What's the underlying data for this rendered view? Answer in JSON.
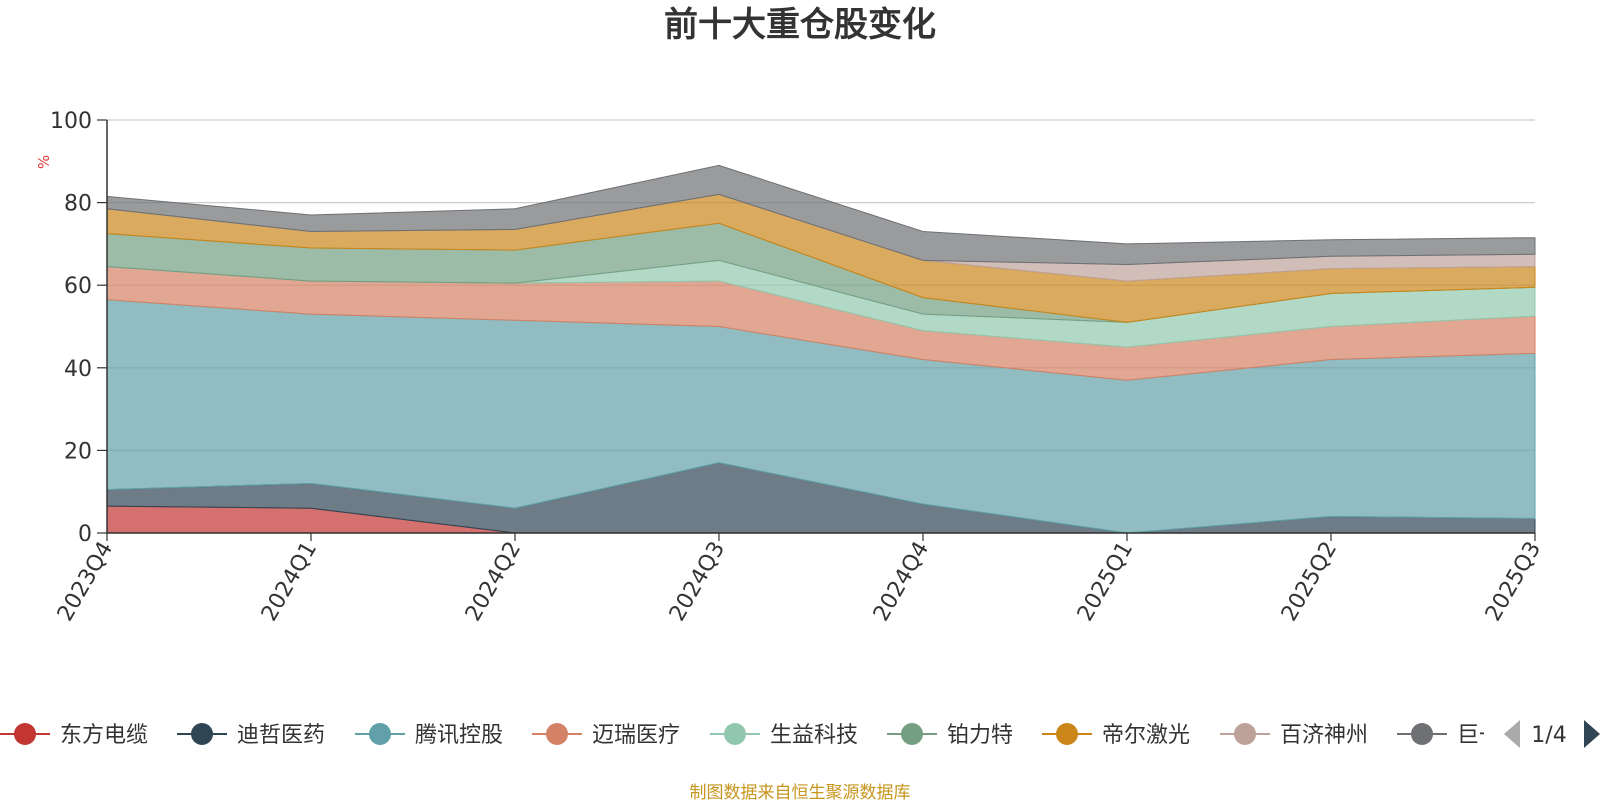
{
  "chart_data": {
    "type": "area",
    "title": "前十大重仓股变化",
    "ylabel": "%",
    "ylim": [
      0,
      100
    ],
    "yticks": [
      0,
      20,
      40,
      60,
      80,
      100
    ],
    "grid": true,
    "categories": [
      "2023Q4",
      "2024Q1",
      "2024Q2",
      "2024Q3",
      "2024Q4",
      "2025Q1",
      "2025Q2",
      "2025Q3"
    ],
    "series": [
      {
        "name": "东方电缆",
        "color": "#c23531",
        "values": [
          6.5,
          6,
          0,
          0,
          0,
          0,
          0,
          0
        ]
      },
      {
        "name": "迪哲医药",
        "color": "#2f4554",
        "values": [
          4,
          6,
          6,
          17,
          7,
          0,
          4,
          3.5
        ]
      },
      {
        "name": "腾讯控股",
        "color": "#61a0a8",
        "values": [
          46,
          41,
          45.5,
          33,
          35,
          37,
          38,
          40
        ]
      },
      {
        "name": "迈瑞医疗",
        "color": "#d48265",
        "values": [
          8,
          8,
          9,
          11,
          7,
          8,
          8,
          9
        ]
      },
      {
        "name": "生益科技",
        "color": "#91c7ae",
        "values": [
          0,
          0,
          0,
          5,
          4,
          6,
          8,
          7
        ]
      },
      {
        "name": "铂力特",
        "color": "#749f83",
        "values": [
          8,
          8,
          8,
          9,
          4,
          0,
          0,
          0
        ]
      },
      {
        "name": "帝尔激光",
        "color": "#ca8619",
        "values": [
          6,
          4,
          5,
          7,
          9,
          10,
          6,
          5
        ]
      },
      {
        "name": "百济神州",
        "color": "#bda29a",
        "values": [
          0,
          0,
          0,
          0,
          0,
          4,
          3,
          3
        ]
      },
      {
        "name": "巨一科技",
        "color": "#6e7074",
        "values": [
          3,
          4,
          5,
          7,
          7,
          5,
          4,
          4
        ]
      }
    ]
  },
  "legend": {
    "items": [
      "东方电缆",
      "迪哲医药",
      "腾讯控股",
      "迈瑞医疗",
      "生益科技",
      "铂力特",
      "帝尔激光",
      "百济神州",
      "巨一科技"
    ],
    "page_indicator": "1/4"
  },
  "source_note": "制图数据来自恒生聚源数据库"
}
